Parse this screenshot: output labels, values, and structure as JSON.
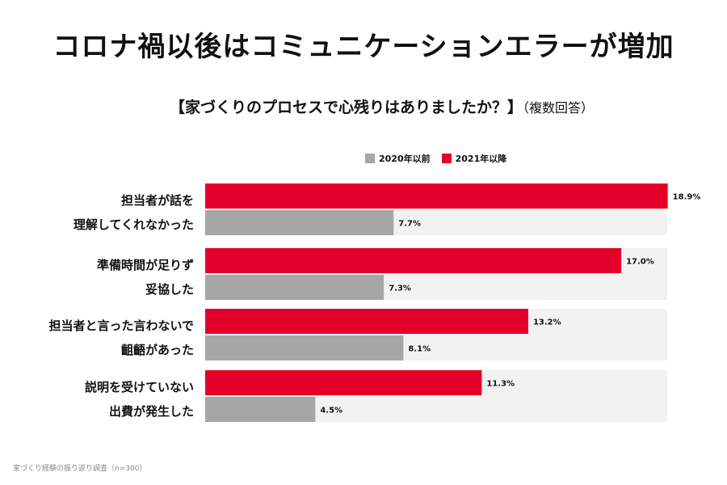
{
  "title": "コロナ禍以後はコミュニケーションエラーが増加",
  "subtitle": "【家づくりのプロセスで心残りはありましたか？】",
  "subtitle_note": "（複数回答）",
  "footnote": "家づくり経験の振り返り調査（n=300）",
  "colors": {
    "s2020": "#a6a6a6",
    "s2021": "#e3002b",
    "band": "#f2f2f2"
  },
  "chart_data": {
    "type": "bar",
    "orientation": "horizontal",
    "title": "【家づくりのプロセスで心残りはありましたか？】（複数回答）",
    "xlabel": "",
    "ylabel": "",
    "xlim": [
      0,
      20
    ],
    "grid": false,
    "legend_position": "top",
    "unit": "%",
    "categories": [
      [
        "担当者が話を",
        "理解してくれなかった"
      ],
      [
        "準備時間が足りず",
        "妥協した"
      ],
      [
        "担当者と言った言わないで",
        "齟齬があった"
      ],
      [
        "説明を受けていない",
        "出費が発生した"
      ]
    ],
    "series": [
      {
        "name": "2021年以降",
        "color_key": "s2021",
        "values": [
          18.9,
          17.0,
          13.2,
          11.3
        ],
        "labels": [
          "18.9%",
          "17.0%",
          "13.2%",
          "11.3%"
        ]
      },
      {
        "name": "2020年以前",
        "color_key": "s2020",
        "values": [
          7.7,
          7.3,
          8.1,
          4.5
        ],
        "labels": [
          "7.7%",
          "7.3%",
          "8.1%",
          "4.5%"
        ]
      }
    ],
    "legend": [
      {
        "name": "2020年以前",
        "color_key": "s2020"
      },
      {
        "name": "2021年以降",
        "color_key": "s2021"
      }
    ]
  }
}
